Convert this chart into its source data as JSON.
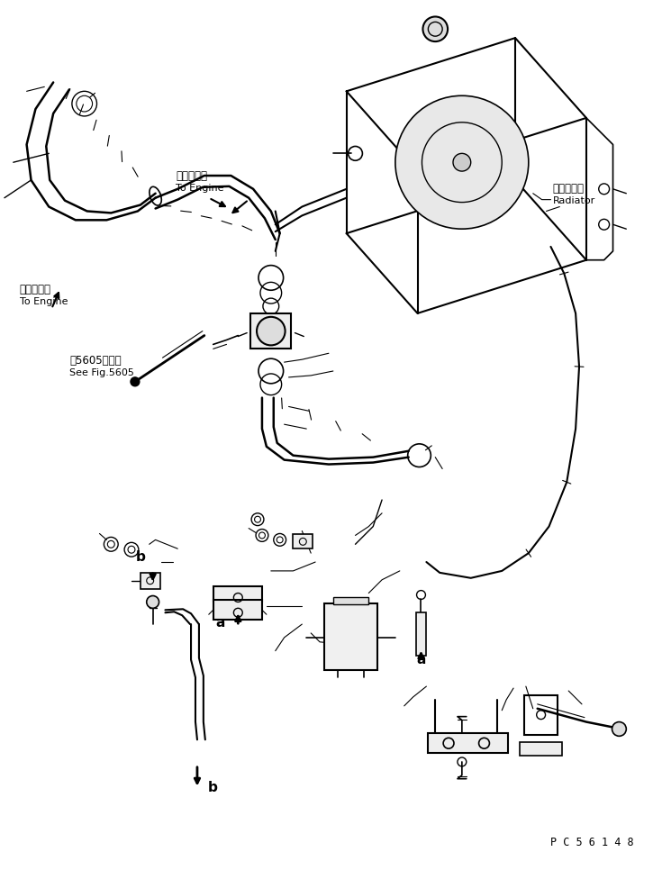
{
  "bg_color": "#ffffff",
  "line_color": "#000000",
  "part_code": "P C 5 6 1 4 8",
  "labels": {
    "engine1_jp": "エンジンへ",
    "engine1_en": "To Engine",
    "engine2_jp": "エンジンへ",
    "engine2_en": "To Engine",
    "radiator_jp": "ラジエータ",
    "radiator_en": "Radiator",
    "see_fig_jp": "第5605図参照",
    "see_fig_en": "See Fig.5605"
  },
  "label_a": "a",
  "label_b": "b",
  "figsize": [
    7.25,
    9.66
  ],
  "dpi": 100
}
